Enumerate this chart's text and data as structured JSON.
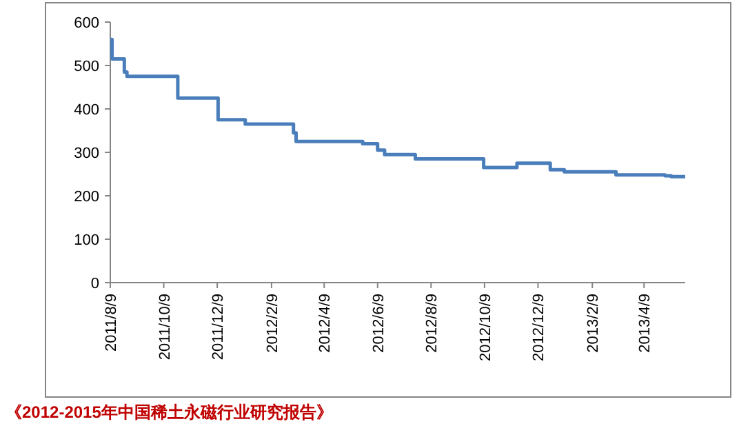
{
  "chart_data": {
    "type": "step",
    "x": [
      "2011-08-09",
      "2011-08-11",
      "2011-08-25",
      "2011-08-28",
      "2011-10-25",
      "2011-12-10",
      "2012-01-10",
      "2012-03-05",
      "2012-03-08",
      "2012-05-23",
      "2012-06-09",
      "2012-06-17",
      "2012-07-22",
      "2012-10-08",
      "2012-11-15",
      "2012-12-23",
      "2013-01-08",
      "2013-03-08",
      "2013-05-03",
      "2013-05-10",
      "2013-05-26"
    ],
    "series": [
      {
        "color": "#4a7ebb",
        "values": [
          560,
          515,
          485,
          475,
          425,
          375,
          365,
          345,
          325,
          320,
          305,
          295,
          285,
          265,
          275,
          260,
          255,
          248,
          246,
          244,
          244
        ]
      }
    ],
    "xlim": [
      "2011-08-09",
      "2013-05-26"
    ],
    "xticks": [
      {
        "value": "2011-08-09",
        "label": "2011/8/9"
      },
      {
        "value": "2011-10-09",
        "label": "2011/10/9"
      },
      {
        "value": "2011-12-09",
        "label": "2011/12/9"
      },
      {
        "value": "2012-02-09",
        "label": "2012/2/9"
      },
      {
        "value": "2012-04-09",
        "label": "2012/4/9"
      },
      {
        "value": "2012-06-09",
        "label": "2012/6/9"
      },
      {
        "value": "2012-08-09",
        "label": "2012/8/9"
      },
      {
        "value": "2012-10-09",
        "label": "2012/10/9"
      },
      {
        "value": "2012-12-09",
        "label": "2012/12/9"
      },
      {
        "value": "2013-02-09",
        "label": "2013/2/9"
      },
      {
        "value": "2013-04-09",
        "label": "2013/4/9"
      }
    ],
    "ylim": [
      0,
      600
    ],
    "yticks": [
      0,
      100,
      200,
      300,
      400,
      500,
      600
    ],
    "grid": false,
    "line_style": "solid",
    "marker": "none",
    "annotations": [
      "《2012-2015年中国稀土永磁行业研究报告》"
    ]
  }
}
